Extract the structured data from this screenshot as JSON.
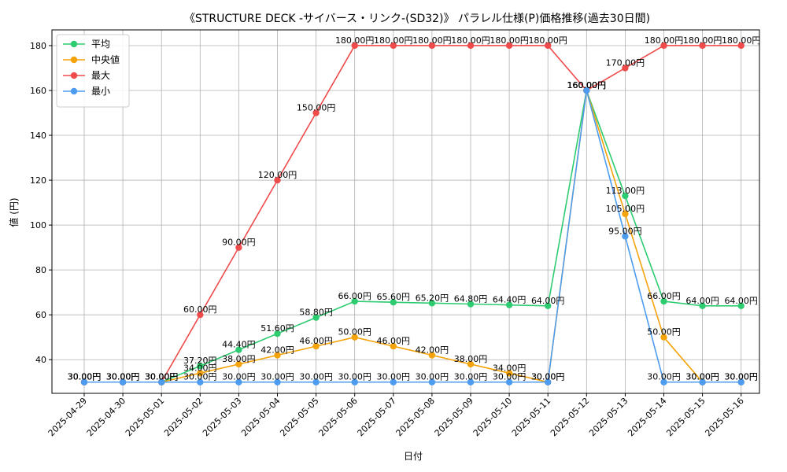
{
  "chart_data": {
    "type": "line",
    "title": "《STRUCTURE DECK -サイバース・リンク-(SD32)》 パラレル仕様(P)価格推移(過去30日間)",
    "xlabel": "日付",
    "ylabel": "値 (円)",
    "ylim": [
      25,
      187
    ],
    "yticks": [
      40,
      60,
      80,
      100,
      120,
      140,
      160,
      180
    ],
    "grid": true,
    "legend_position": "top-left",
    "value_suffix": "円",
    "categories": [
      "2025-04-29",
      "2025-04-30",
      "2025-05-01",
      "2025-05-02",
      "2025-05-03",
      "2025-05-04",
      "2025-05-05",
      "2025-05-06",
      "2025-05-07",
      "2025-05-08",
      "2025-05-09",
      "2025-05-10",
      "2025-05-11",
      "2025-05-12",
      "2025-05-13",
      "2025-05-14",
      "2025-05-15",
      "2025-05-16"
    ],
    "series": [
      {
        "name": "平均",
        "color": "#2ecc71",
        "values": [
          30,
          30,
          30,
          37.2,
          44.4,
          51.6,
          58.8,
          66,
          65.6,
          65.2,
          64.8,
          64.4,
          64,
          160,
          113,
          66,
          64,
          64
        ]
      },
      {
        "name": "中央値",
        "color": "#f5a30a",
        "values": [
          30,
          30,
          30,
          34,
          38,
          42,
          46,
          50,
          46,
          42,
          38,
          34,
          30,
          160,
          105,
          50,
          30,
          30
        ]
      },
      {
        "name": "最大",
        "color": "#ef4b4b",
        "values": [
          30,
          30,
          30,
          60,
          90,
          120,
          150,
          180,
          180,
          180,
          180,
          180,
          180,
          160,
          170,
          180,
          180,
          180
        ]
      },
      {
        "name": "最小",
        "color": "#4d9cf0",
        "values": [
          30,
          30,
          30,
          30,
          30,
          30,
          30,
          30,
          30,
          30,
          30,
          30,
          30,
          160,
          95,
          30,
          30,
          30
        ]
      }
    ]
  }
}
